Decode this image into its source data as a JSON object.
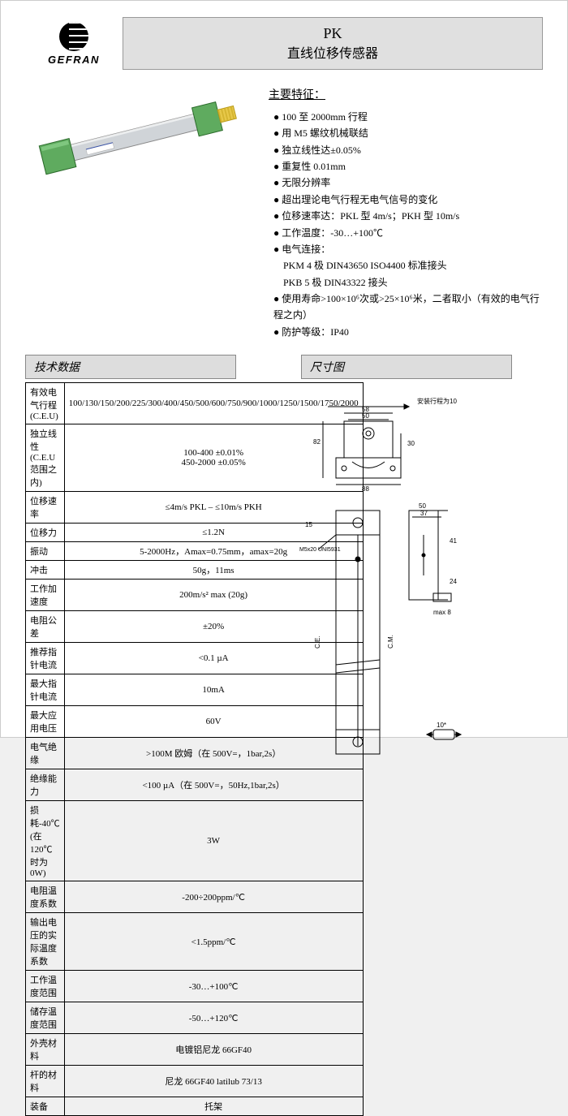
{
  "logo": {
    "brand": "GEFRAN"
  },
  "title": {
    "model": "PK",
    "name": "直线位移传感器"
  },
  "features": {
    "heading": "主要特征：",
    "items": [
      "100 至 2000mm 行程",
      "用 M5 螺纹机械联结",
      "独立线性达±0.05%",
      "重复性 0.01mm",
      "无限分辨率",
      "超出理论电气行程无电气信号的变化",
      "位移速率达：PKL 型 4m/s；PKH 型 10m/s",
      "工作温度：-30…+100℃",
      "电气连接："
    ],
    "sub_connector1": "PKM 4 极 DIN43650 ISO4400 标准接头",
    "sub_connector2": "PKB 5 极 DIN43322 接头",
    "item_life": "使用寿命>100×10⁶次或>25×10⁶米，二者取小（有效的电气行程之内）",
    "item_ip": "防护等级：IP40"
  },
  "section_tech": "技术数据",
  "section_dim": "尺寸图",
  "spec": {
    "rows": [
      {
        "label": "有效电气行程 (C.E.U)",
        "value": "100/130/150/200/225/300/400/450/500/600/750/900/1000/1250/1500/1750/2000"
      },
      {
        "label": "独立线性 (C.E.U 范围之内)",
        "value": "100-400  ±0.01%\n450-2000  ±0.05%"
      },
      {
        "label": "位移速率",
        "value": "≤4m/s PKL – ≤10m/s PKH"
      },
      {
        "label": "位移力",
        "value": "≤1.2N"
      },
      {
        "label": "振动",
        "value": "5-2000Hz，Amax=0.75mm，amax=20g"
      },
      {
        "label": "冲击",
        "value": "50g，11ms"
      },
      {
        "label": "工作加速度",
        "value": "200m/s² max (20g)"
      },
      {
        "label": "电阻公差",
        "value": "±20%"
      },
      {
        "label": "推荐指针电流",
        "value": "<0.1 µA"
      },
      {
        "label": "最大指针电流",
        "value": "10mA"
      },
      {
        "label": "最大应用电压",
        "value": "60V"
      },
      {
        "label": "电气绝缘",
        "value": ">100M 欧姆（在 500V=，1bar,2s）"
      },
      {
        "label": "绝缘能力",
        "value": "<100 µA（在 500V=，50Hz,1bar,2s）"
      },
      {
        "label": "损耗-40℃ (在 120℃时为 0W)",
        "value": "3W"
      },
      {
        "label": "电阻温度系数",
        "value": "-200÷200ppm/℃"
      },
      {
        "label": "输出电压的实际温度系数",
        "value": "<1.5ppm/℃"
      },
      {
        "label": "工作温度范围",
        "value": "-30…+100℃"
      },
      {
        "label": "储存温度范围",
        "value": "-50…+120℃"
      },
      {
        "label": "外壳材料",
        "value": "电镀铝尼龙 66GF40"
      },
      {
        "label": "杆的材料",
        "value": "尼龙 66GF40 latilub 73/13"
      },
      {
        "label": "装备",
        "value": "托架"
      }
    ]
  },
  "dimensions": {
    "top_arrow": "安装行程为10",
    "dim_58_top": "58",
    "dim_50_top": "50",
    "dim_82": "82",
    "dim_30": "30",
    "dim_88": "88",
    "dim_50": "50",
    "dim_37": "37",
    "dim_15": "15",
    "dims_side": "C.E.",
    "dims_side2": "C.M.",
    "m5": "M5x20\nUNI5931",
    "max8": "max 8",
    "dim_10": "10*",
    "dim_24": "24",
    "dim_41": "41"
  },
  "colors": {
    "page_bg": "#ffffff",
    "banner_bg": "#e0e0e0",
    "section_bg": "#dddddd",
    "product_green": "#5fab5f",
    "product_body": "#d0d4d8",
    "product_cap": "#e8c94a"
  }
}
